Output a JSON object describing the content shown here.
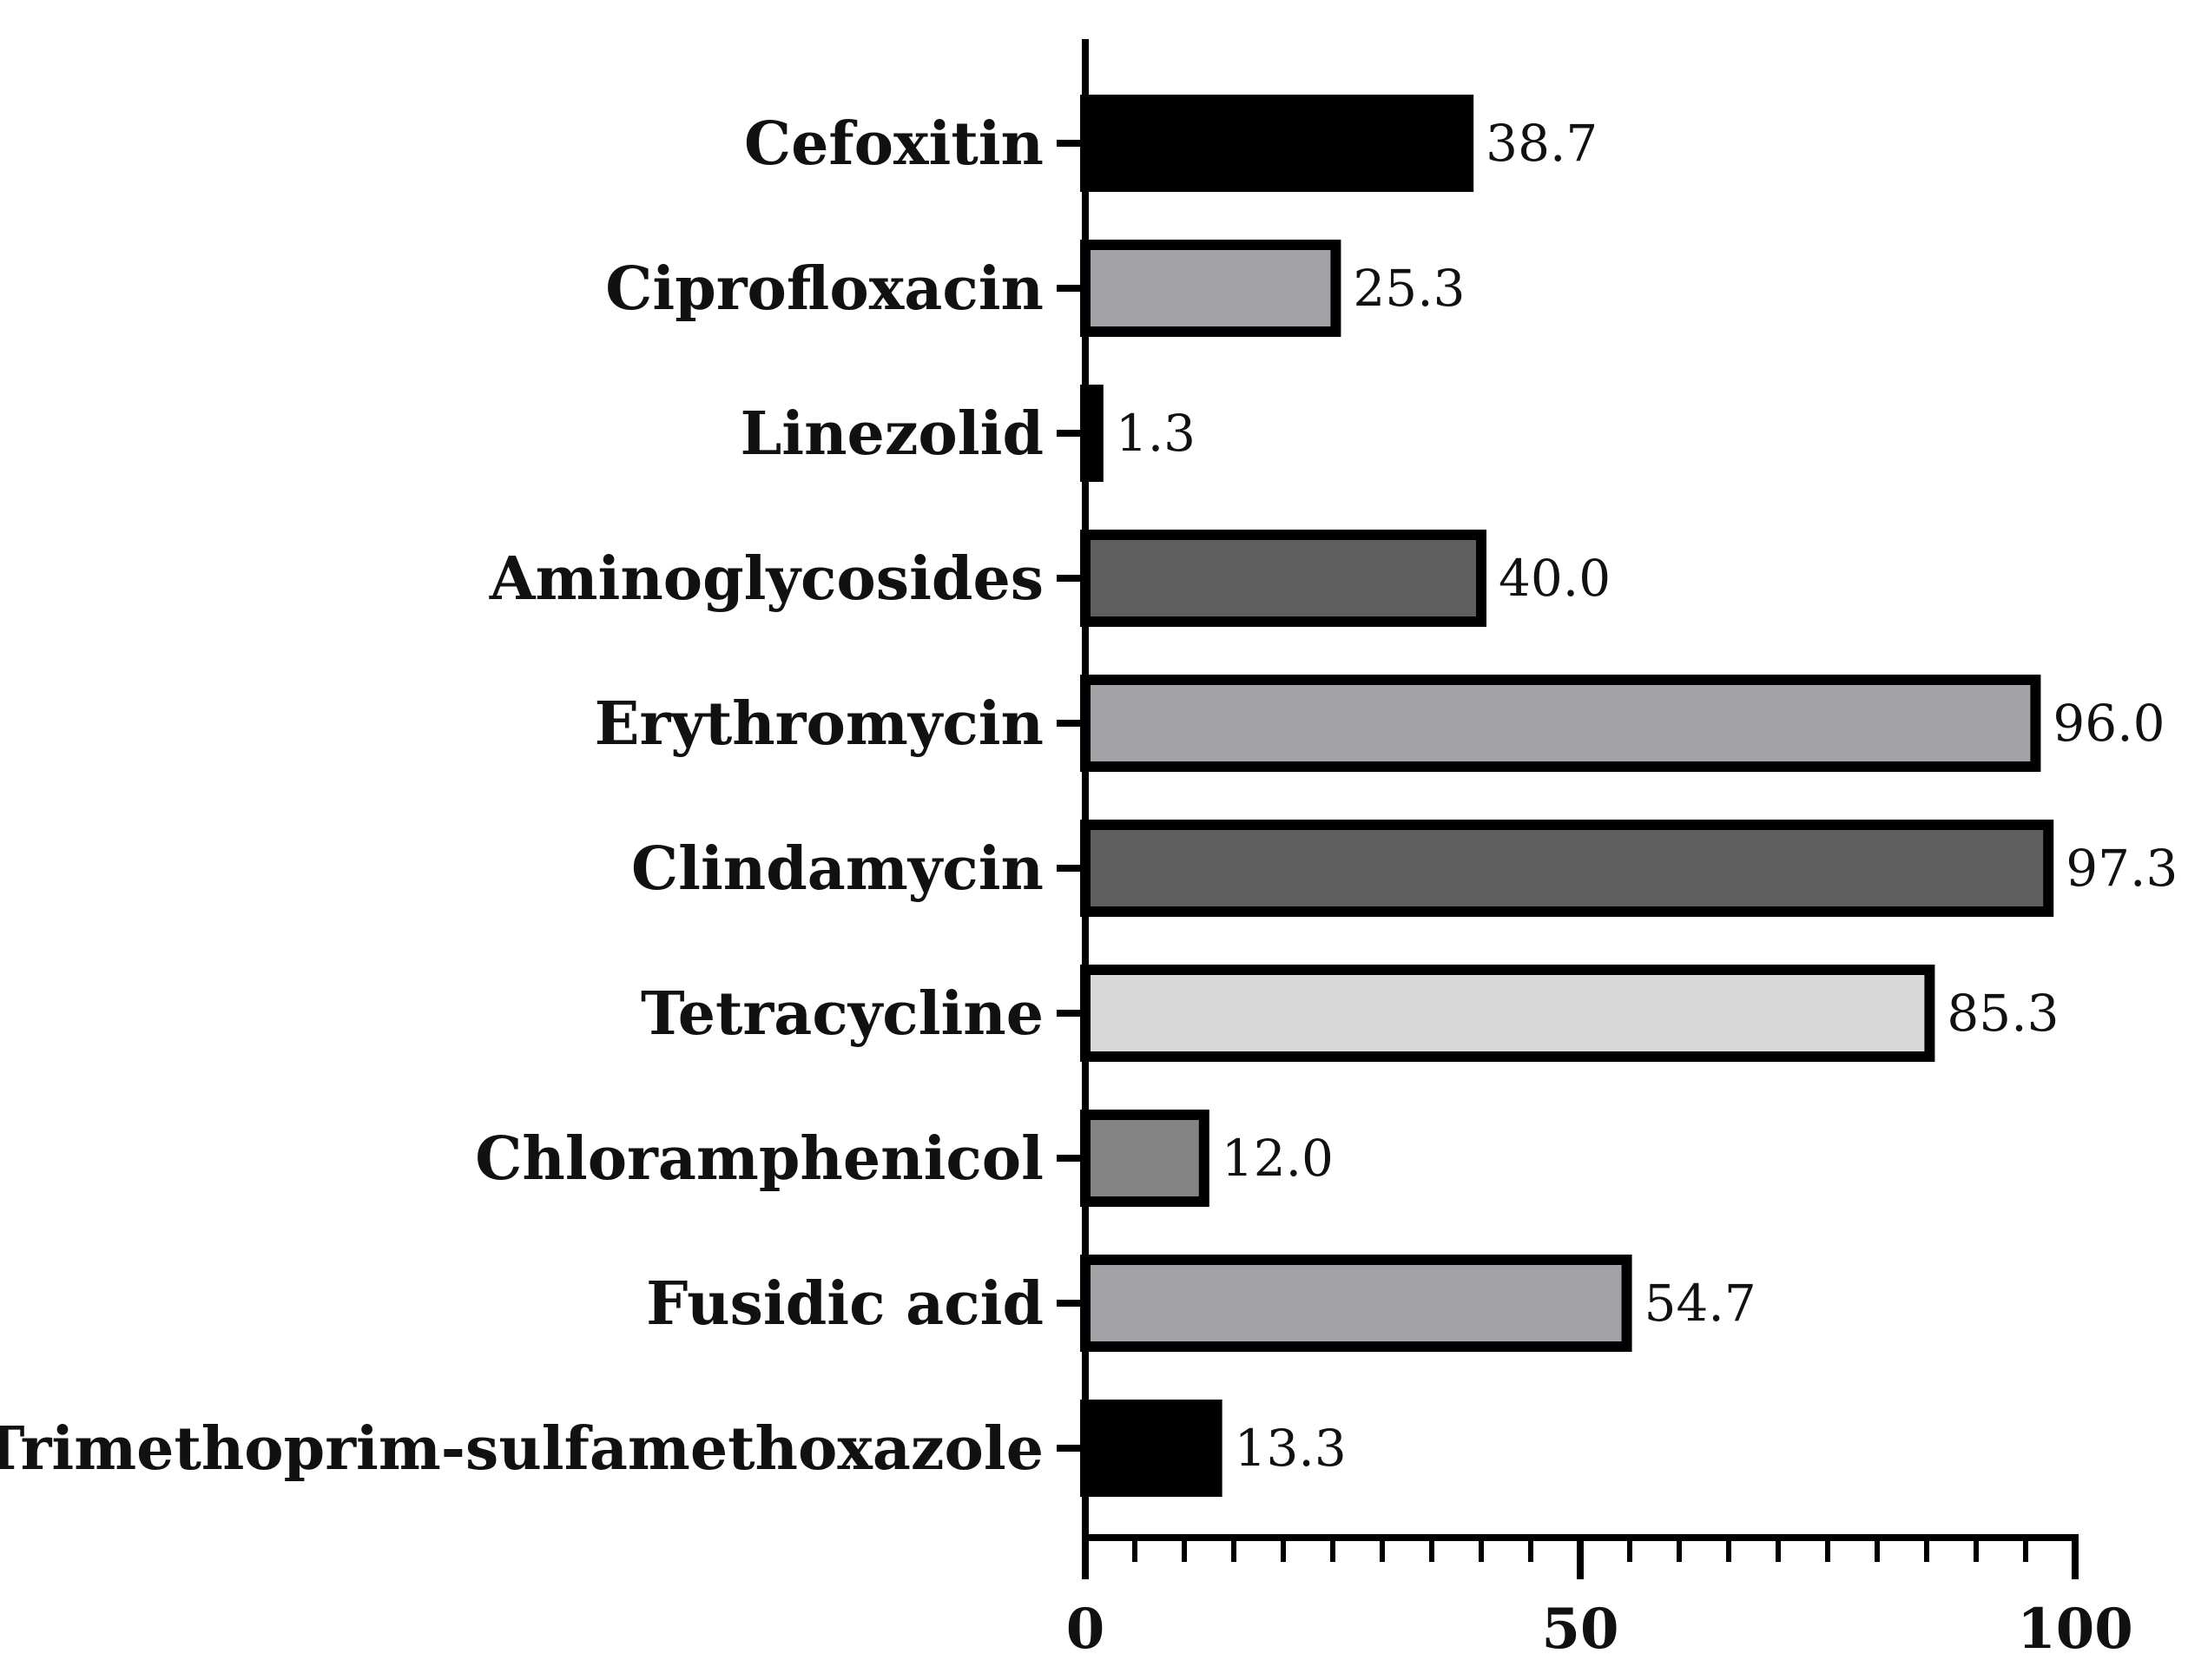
{
  "chart_data": {
    "type": "bar",
    "orientation": "horizontal",
    "title": "",
    "xlabel": "",
    "ylabel": "",
    "xlim": [
      0,
      100
    ],
    "x_major_ticks": [
      0,
      50,
      100
    ],
    "x_minor_tick_step": 5,
    "grid": false,
    "legend": "none",
    "categories": [
      "Cefoxitin",
      "Ciprofloxacin",
      "Linezolid",
      "Aminoglycosides",
      "Erythromycin",
      "Clindamycin",
      "Tetracycline",
      "Chloramphenicol",
      "Fusidic acid",
      "Trimethoprim-sulfamethoxazole"
    ],
    "values": [
      38.7,
      25.3,
      1.3,
      40.0,
      96.0,
      97.3,
      85.3,
      12.0,
      54.7,
      13.3
    ],
    "value_labels": [
      "38.7",
      "25.3",
      "1.3",
      "40.0",
      "96.0",
      "97.3",
      "85.3",
      "12.0",
      "54.7",
      "13.3"
    ],
    "bar_colors": [
      "#000000",
      "#a3a2a6",
      "#000000",
      "#5e5e5e",
      "#a3a2a6",
      "#5e5e5e",
      "#d8d8d8",
      "#848484",
      "#a3a2a6",
      "#000000"
    ],
    "outline_color": "#000000"
  }
}
